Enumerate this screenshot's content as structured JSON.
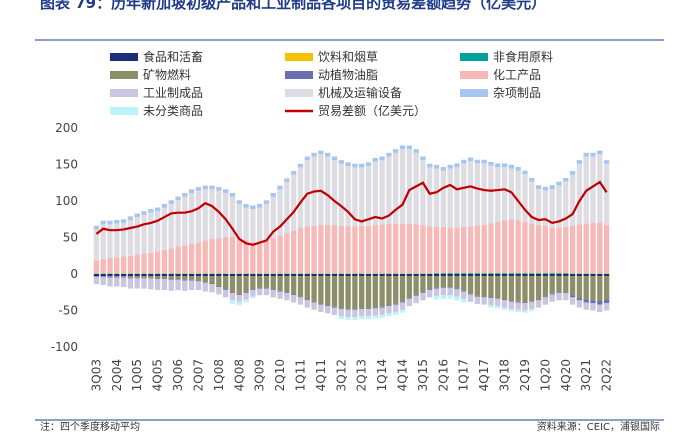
{
  "chart_data": {
    "type": "bar",
    "title": "图表 79：历年新加坡初级产品和工业制品各项目的贸易差额趋势（亿美元）",
    "note": "注：四个季度移动平均",
    "source": "资料来源：CEIC，浦银国际",
    "categories": [
      "3Q03",
      null,
      null,
      "2Q04",
      null,
      null,
      "1Q05",
      null,
      null,
      "4Q05",
      null,
      null,
      "3Q06",
      null,
      null,
      "2Q07",
      null,
      null,
      "1Q08",
      null,
      null,
      "4Q08",
      null,
      null,
      "3Q09",
      null,
      null,
      "2Q10",
      null,
      null,
      "1Q11",
      null,
      null,
      "4Q11",
      null,
      null,
      "3Q12",
      null,
      null,
      "2Q13",
      null,
      null,
      "1Q14",
      null,
      null,
      "4Q14",
      null,
      null,
      "3Q15",
      null,
      null,
      "2Q16",
      null,
      null,
      "1Q17",
      null,
      null,
      "4Q17",
      null,
      null,
      "3Q18",
      null,
      null,
      "2Q19",
      null,
      null,
      "1Q20",
      null,
      null,
      "4Q20",
      null,
      null,
      "3Q21",
      null,
      null,
      "2Q22"
    ],
    "ylim": [
      -100,
      200
    ],
    "yticks": [
      -100,
      -50,
      0,
      50,
      100,
      150,
      200
    ],
    "series": [
      {
        "name": "食品和活畜",
        "color": "#1a2f7a",
        "values": [
          -3,
          -3,
          -3,
          -3,
          -3,
          -3,
          -3,
          -3,
          -3,
          -3,
          -3,
          -3,
          -3,
          -3,
          -3,
          -3,
          -3,
          -3,
          -3,
          -3,
          -3,
          -3,
          -3,
          -3,
          -3,
          -3,
          -3,
          -3,
          -3,
          -3,
          -3,
          -3,
          -3,
          -3,
          -3,
          -3,
          -3,
          -3,
          -3,
          -3,
          -3,
          -3,
          -3,
          -3,
          -3,
          -3,
          -3,
          -3,
          -3,
          -3,
          -3,
          -3,
          -3,
          -3,
          -3,
          -3,
          -3,
          -3,
          -3,
          -3,
          -3,
          -3,
          -3,
          -3,
          -3,
          -3,
          -3,
          -3,
          -3,
          -3,
          -3,
          -3,
          -3,
          -3,
          -3,
          -3
        ]
      },
      {
        "name": "饮料和烟草",
        "color": "#f5c200",
        "values": [
          0.5,
          0.5,
          0.5,
          0.5,
          0.5,
          0.5,
          0.5,
          0.5,
          0.5,
          0.5,
          0.5,
          0.5,
          0.5,
          0.5,
          0.5,
          0.5,
          0.5,
          0.5,
          0.5,
          0.5,
          0.5,
          0.5,
          0.5,
          0.5,
          0.5,
          0.5,
          0.5,
          0.5,
          0.5,
          0.5,
          0.5,
          0.5,
          0.5,
          0.5,
          0.5,
          0.5,
          0.5,
          0.5,
          0.5,
          0.5,
          0.5,
          0.5,
          0.5,
          0.5,
          0.5,
          0.5,
          0.5,
          0.5,
          0.5,
          0.5,
          0.5,
          0.5,
          0.5,
          0.5,
          0.5,
          0.5,
          0.5,
          0.5,
          0.5,
          0.5,
          0.5,
          0.5,
          0.5,
          0.5,
          0.5,
          0.5,
          0.5,
          0.5,
          0.5,
          0.5,
          0.5,
          0.5,
          0.5,
          0.5,
          0.5,
          0.5
        ]
      },
      {
        "name": "非食用原料",
        "color": "#00a19a",
        "values": [
          0.5,
          0.5,
          0.5,
          0.5,
          0.5,
          0.5,
          0.5,
          0.5,
          0.5,
          0.5,
          0.5,
          0.5,
          0.5,
          0.5,
          0.5,
          0.5,
          0.5,
          0.5,
          0.5,
          0.5,
          0.5,
          0.5,
          0.5,
          0.5,
          0.5,
          0.5,
          0.5,
          0.5,
          0.5,
          0.5,
          0.5,
          0.5,
          0.5,
          0.5,
          0.5,
          0.5,
          0.5,
          0.5,
          0.5,
          0.5,
          0.5,
          0.5,
          0.5,
          0.5,
          0.5,
          0.5,
          0.5,
          0.5,
          0.5,
          0.5,
          1,
          1,
          1,
          1,
          1,
          1,
          1,
          1,
          1,
          1,
          1,
          1,
          1,
          1,
          1,
          1,
          1,
          1,
          1,
          1,
          0.5,
          0.5,
          0.5,
          0.5,
          0.5,
          0.5
        ]
      },
      {
        "name": "矿物燃料",
        "color": "#8c8f6a",
        "values": [
          0,
          0,
          -1,
          -1,
          -1,
          -2,
          -2,
          -2,
          -2,
          -3,
          -3,
          -4,
          -4,
          -5,
          -5,
          -6,
          -8,
          -10,
          -14,
          -18,
          -22,
          -25,
          -22,
          -18,
          -16,
          -16,
          -18,
          -20,
          -22,
          -25,
          -28,
          -32,
          -35,
          -38,
          -40,
          -42,
          -44,
          -45,
          -45,
          -44,
          -44,
          -43,
          -42,
          -40,
          -38,
          -35,
          -30,
          -26,
          -22,
          -18,
          -16,
          -15,
          -15,
          -17,
          -20,
          -24,
          -27,
          -28,
          -29,
          -30,
          -32,
          -34,
          -35,
          -36,
          -34,
          -32,
          -28,
          -24,
          -22,
          -22,
          -26,
          -30,
          -32,
          -33,
          -34,
          -32
        ]
      },
      {
        "name": "动植物油脂",
        "color": "#6b6fb0",
        "values": [
          -1,
          -1,
          -1,
          -1,
          -1,
          -1,
          -1,
          -1,
          -1,
          -1,
          -1,
          -1,
          -1,
          -1,
          -1,
          -1,
          -1,
          -1,
          -1,
          -1,
          -1,
          -1,
          -1,
          -1,
          -1,
          -1,
          -1,
          -1,
          -1,
          -1,
          -1,
          -1,
          -1,
          -1,
          -1,
          -1,
          -1,
          -1,
          -1,
          -1,
          -1,
          -1,
          -1,
          -1,
          -1,
          -1,
          -1,
          -1,
          -1,
          -1,
          -1,
          -1,
          -1,
          -1,
          -1,
          -1,
          -1,
          -1,
          -1,
          -1,
          -1,
          -1,
          -1,
          -1,
          -1,
          -1,
          -1,
          -1,
          -1,
          -1,
          -3,
          -3,
          -4,
          -4,
          -5,
          -5
        ]
      },
      {
        "name": "化工产品",
        "color": "#f7b8b8",
        "values": [
          18,
          20,
          21,
          22,
          23,
          24,
          26,
          27,
          28,
          30,
          32,
          34,
          36,
          38,
          40,
          42,
          45,
          47,
          48,
          50,
          50,
          48,
          45,
          42,
          43,
          45,
          48,
          52,
          55,
          58,
          62,
          64,
          65,
          66,
          66,
          66,
          65,
          64,
          64,
          65,
          65,
          66,
          67,
          68,
          68,
          68,
          68,
          67,
          66,
          64,
          63,
          63,
          62,
          62,
          63,
          64,
          65,
          66,
          68,
          70,
          72,
          73,
          72,
          70,
          68,
          66,
          64,
          62,
          62,
          63,
          65,
          67,
          68,
          69,
          70,
          66
        ]
      },
      {
        "name": "工业制成品",
        "color": "#c9c6e0",
        "values": [
          -10,
          -11,
          -12,
          -12,
          -13,
          -14,
          -14,
          -14,
          -15,
          -15,
          -15,
          -15,
          -14,
          -14,
          -13,
          -12,
          -12,
          -11,
          -10,
          -10,
          -10,
          -9,
          -9,
          -9,
          -9,
          -9,
          -10,
          -10,
          -10,
          -10,
          -10,
          -10,
          -10,
          -10,
          -10,
          -10,
          -10,
          -10,
          -10,
          -10,
          -10,
          -10,
          -10,
          -10,
          -10,
          -10,
          -10,
          -10,
          -10,
          -10,
          -10,
          -10,
          -10,
          -10,
          -10,
          -10,
          -10,
          -10,
          -10,
          -10,
          -10,
          -10,
          -10,
          -10,
          -10,
          -10,
          -10,
          -10,
          -10,
          -10,
          -10,
          -10,
          -10,
          -10,
          -10,
          -10
        ]
      },
      {
        "name": "机械及运输设备",
        "color": "#dcdce2",
        "values": [
          42,
          47,
          46,
          46,
          46,
          49,
          51,
          53,
          55,
          55,
          58,
          61,
          64,
          67,
          70,
          71,
          70,
          68,
          65,
          60,
          55,
          47,
          45,
          46,
          47,
          50,
          57,
          63,
          70,
          77,
          83,
          91,
          95,
          97,
          94,
          89,
          85,
          83,
          81,
          80,
          82,
          87,
          88,
          92,
          97,
          102,
          102,
          98,
          89,
          81,
          80,
          77,
          81,
          83,
          87,
          89,
          85,
          84,
          79,
          75,
          73,
          70,
          68,
          65,
          57,
          49,
          49,
          53,
          58,
          62,
          70,
          83,
          92,
          91,
          93,
          84
        ]
      },
      {
        "name": "杂项制品",
        "color": "#a8c5f0",
        "values": [
          5,
          5,
          5,
          5,
          5,
          5,
          5,
          5,
          5,
          5,
          5,
          5,
          5,
          5,
          5,
          5,
          5,
          5,
          5,
          5,
          5,
          5,
          5,
          5,
          5,
          5,
          5,
          5,
          5,
          5,
          5,
          5,
          5,
          5,
          5,
          5,
          5,
          5,
          5,
          5,
          5,
          5,
          5,
          5,
          5,
          5,
          5,
          5,
          5,
          5,
          5,
          5,
          5,
          5,
          5,
          5,
          5,
          5,
          5,
          5,
          5,
          5,
          5,
          5,
          5,
          5,
          5,
          5,
          5,
          5,
          5,
          5,
          5,
          5,
          5,
          5
        ]
      },
      {
        "name": "未分类商品",
        "color": "#bff3fb",
        "values": [
          0,
          0,
          0,
          0,
          0,
          0,
          0,
          0,
          0,
          0,
          0,
          0,
          0,
          0,
          0,
          0,
          0,
          0,
          0,
          0,
          -5,
          -5,
          -4,
          -2,
          0,
          0,
          0,
          0,
          0,
          0,
          0,
          0,
          0,
          0,
          0,
          0,
          -4,
          -4,
          -4,
          -4,
          -4,
          -4,
          -4,
          -4,
          -4,
          -4,
          0,
          0,
          0,
          0,
          -5,
          -5,
          -5,
          -5,
          -5,
          0,
          0,
          0,
          -3,
          -3,
          -3,
          -3,
          -3,
          -3,
          -3,
          0,
          0,
          0,
          0,
          0,
          0,
          0,
          0,
          0,
          0,
          0
        ]
      },
      {
        "name": "贸易差额（亿美元）",
        "color": "#c00000",
        "type": "line",
        "values": [
          55,
          62,
          60,
          60,
          61,
          63,
          65,
          68,
          70,
          73,
          78,
          83,
          84,
          84,
          86,
          90,
          97,
          93,
          85,
          75,
          62,
          48,
          42,
          40,
          43,
          46,
          58,
          65,
          75,
          85,
          98,
          110,
          113,
          114,
          108,
          100,
          93,
          85,
          75,
          72,
          75,
          78,
          76,
          80,
          88,
          95,
          115,
          120,
          125,
          110,
          112,
          118,
          122,
          116,
          118,
          120,
          117,
          115,
          114,
          115,
          116,
          112,
          100,
          88,
          78,
          74,
          75,
          70,
          72,
          76,
          82,
          100,
          114,
          120,
          126,
          112
        ]
      }
    ]
  }
}
